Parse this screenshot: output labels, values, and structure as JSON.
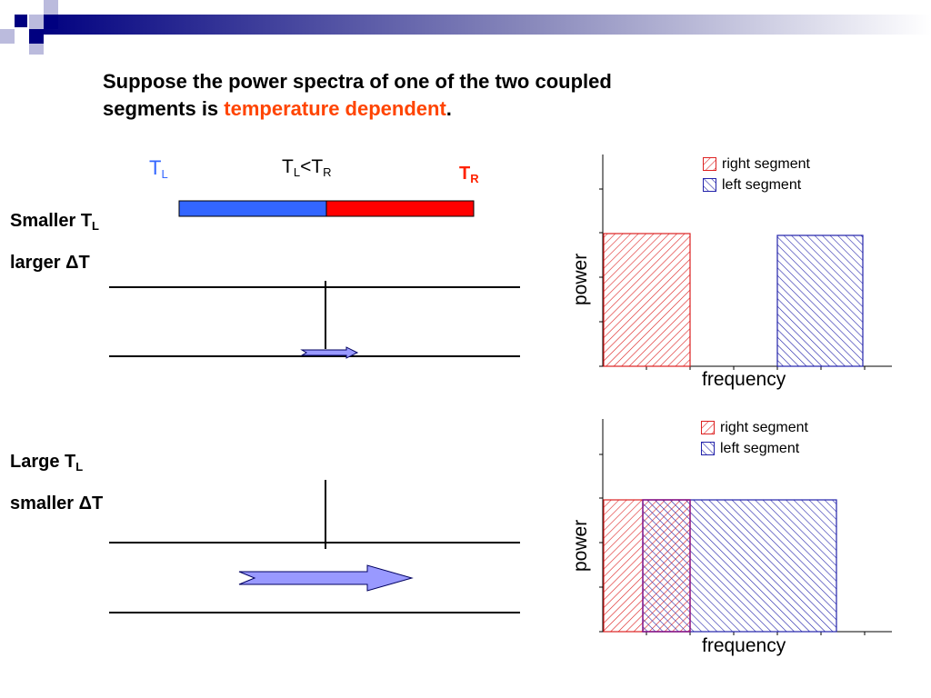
{
  "title": {
    "line1": "Suppose the power spectra of one of the two coupled",
    "line2_prefix": "segments is ",
    "line2_highlight": "temperature dependent",
    "line2_suffix": "."
  },
  "bar": {
    "tl_main": "T",
    "tl_sub": "L",
    "cmp_a": "T",
    "cmp_a_sub": "L",
    "cmp_op": "<",
    "cmp_b": "T",
    "cmp_b_sub": "R",
    "tr_main": "T",
    "tr_sub": "R"
  },
  "case1": {
    "line1_main": "Smaller T",
    "line1_sub": "L",
    "line2": "larger ΔT"
  },
  "case2": {
    "line1_main": "Large T",
    "line1_sub": "L",
    "line2": "smaller ΔT"
  },
  "chart1": {
    "legend": [
      "right segment",
      "left segment"
    ],
    "xlabel": "frequency",
    "ylabel": "power"
  },
  "chart2": {
    "legend": [
      "right segment",
      "left segment"
    ],
    "xlabel": "frequency",
    "ylabel": "power"
  },
  "colors": {
    "left": "#3366ff",
    "right": "#ff0000",
    "highlight": "#ff4400",
    "hatch_red": "#dd2222",
    "hatch_blue": "#2222aa",
    "arrow_fill": "#9999ff"
  }
}
